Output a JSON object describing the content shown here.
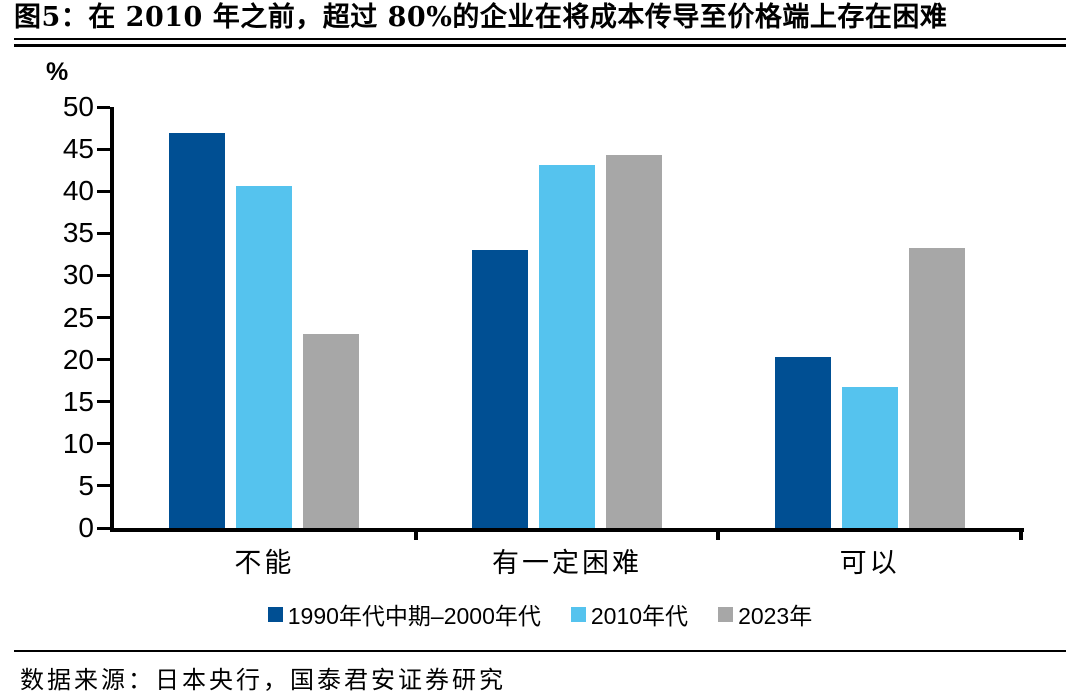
{
  "figure_title": "图5：在 2010 年之前，超过 80%的企业在将成本传导至价格端上存在困难",
  "source_note": "数据来源：日本央行，国泰君安证券研究",
  "chart_data": {
    "type": "bar",
    "title": "在 2010 年之前，超过 80%的企业在将成本传导至价格端上存在困难",
    "unit_label": "%",
    "categories": [
      "不能",
      "有一定困难",
      "可以"
    ],
    "series": [
      {
        "name": "1990年代中期–2000年代",
        "color": "#004F93",
        "values": [
          46.9,
          33.0,
          20.3
        ]
      },
      {
        "name": "2010年代",
        "color": "#55C3EE",
        "values": [
          40.6,
          43.1,
          16.8
        ]
      },
      {
        "name": "2023年",
        "color": "#A7A7A7",
        "values": [
          23.0,
          44.3,
          33.2
        ]
      }
    ],
    "ylim": [
      0,
      50
    ],
    "ytick_step": 5,
    "yticks": [
      0,
      5,
      10,
      15,
      20,
      25,
      30,
      35,
      40,
      45,
      50
    ],
    "grid": false,
    "legend_position": "bottom"
  }
}
